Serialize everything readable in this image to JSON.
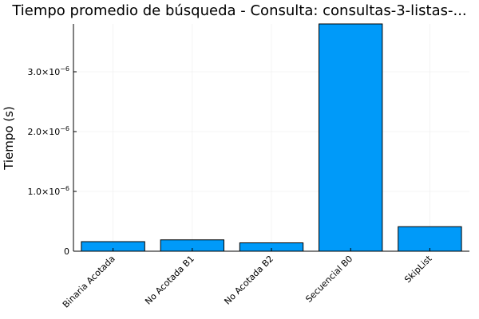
{
  "chart_data": {
    "type": "bar",
    "title": "Tiempo promedio de búsqueda - Consulta: consultas-3-listas-...",
    "ylabel": "Tiempo (s)",
    "xlabel": "",
    "categories": [
      "Binaria Acotada",
      "No Acotada B1",
      "No Acotada B2",
      "Secuencial B0",
      "SkipList"
    ],
    "values": [
      1.6e-07,
      1.9e-07,
      1.4e-07,
      3.8e-06,
      4.1e-07
    ],
    "ylim": [
      0,
      3.8e-06
    ],
    "yticks": [
      {
        "value": 0,
        "label": "0"
      },
      {
        "value": 1e-06,
        "base": "1.0×10",
        "exp": "−6"
      },
      {
        "value": 2e-06,
        "base": "2.0×10",
        "exp": "−6"
      },
      {
        "value": 3e-06,
        "base": "3.0×10",
        "exp": "−6"
      }
    ],
    "bar_color": "#009af9",
    "grid": true,
    "legend": "none"
  }
}
